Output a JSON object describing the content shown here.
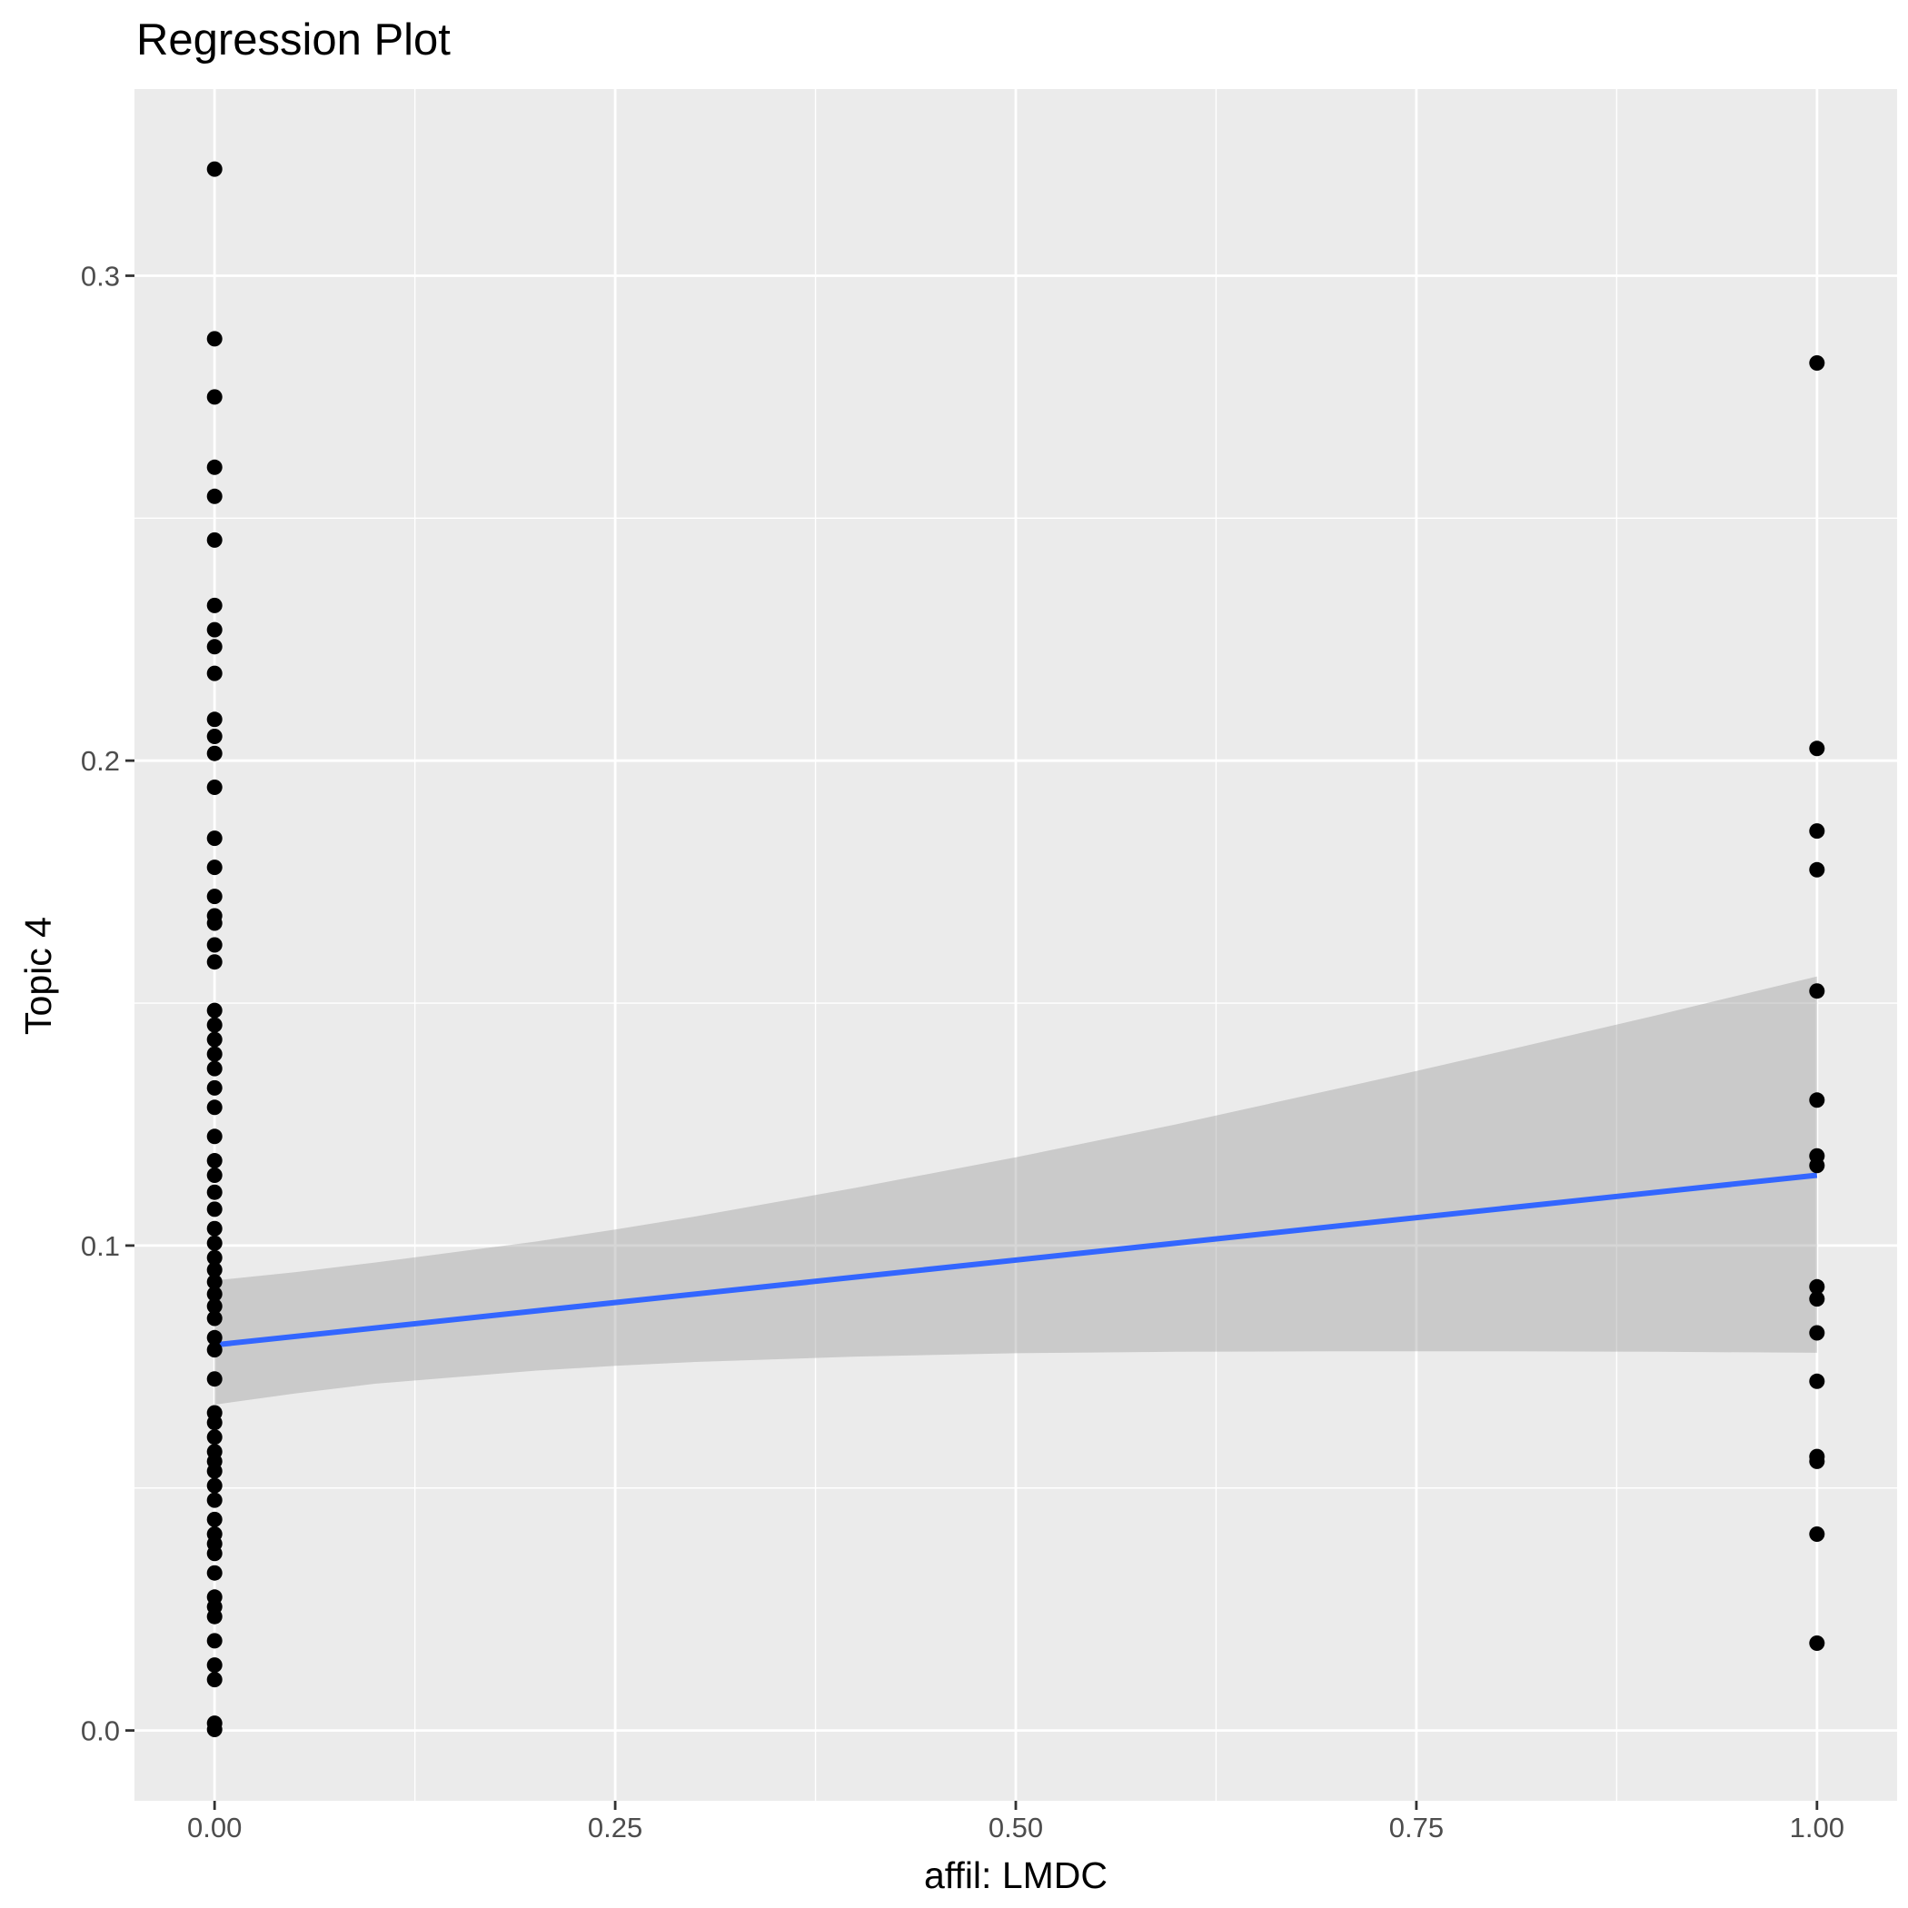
{
  "chart_data": {
    "type": "scatter",
    "title": "Regression Plot",
    "xlabel": "affil: LMDC",
    "ylabel": "Topic 4",
    "xlim": [
      -0.05,
      1.05
    ],
    "ylim": [
      -0.0145,
      0.3385
    ],
    "x_ticks": [
      0,
      0.25,
      0.5,
      0.75,
      1
    ],
    "x_tick_labels": [
      "0.00",
      "0.25",
      "0.50",
      "0.75",
      "1.00"
    ],
    "y_ticks": [
      0,
      0.1,
      0.2,
      0.3
    ],
    "y_tick_labels": [
      "0.0",
      "0.1",
      "0.2",
      "0.3"
    ],
    "grid": true,
    "background": "#ebebeb",
    "series": [
      {
        "type": "scatter",
        "color": "#000000",
        "points": [
          [
            0,
            0.322
          ],
          [
            0,
            0.287
          ],
          [
            0,
            0.275
          ],
          [
            0,
            0.2605
          ],
          [
            0,
            0.2545
          ],
          [
            0,
            0.2455
          ],
          [
            0,
            0.232
          ],
          [
            0,
            0.227
          ],
          [
            0,
            0.2235
          ],
          [
            0,
            0.218
          ],
          [
            0,
            0.2085
          ],
          [
            0,
            0.205
          ],
          [
            0,
            0.2015
          ],
          [
            0,
            0.1945
          ],
          [
            0,
            0.184
          ],
          [
            0,
            0.178
          ],
          [
            0,
            0.172
          ],
          [
            0,
            0.168
          ],
          [
            0,
            0.1665
          ],
          [
            0,
            0.162
          ],
          [
            0,
            0.1585
          ],
          [
            0,
            0.1485
          ],
          [
            0,
            0.1455
          ],
          [
            0,
            0.1425
          ],
          [
            0,
            0.1395
          ],
          [
            0,
            0.1365
          ],
          [
            0,
            0.1325
          ],
          [
            0,
            0.1285
          ],
          [
            0,
            0.1225
          ],
          [
            0,
            0.1175
          ],
          [
            0,
            0.1145
          ],
          [
            0,
            0.111
          ],
          [
            0,
            0.1075
          ],
          [
            0,
            0.1035
          ],
          [
            0,
            0.1005
          ],
          [
            0,
            0.0975
          ],
          [
            0,
            0.095
          ],
          [
            0,
            0.0925
          ],
          [
            0,
            0.09
          ],
          [
            0,
            0.0875
          ],
          [
            0,
            0.085
          ],
          [
            0,
            0.081
          ],
          [
            0,
            0.0785
          ],
          [
            0,
            0.0725
          ],
          [
            0,
            0.0655
          ],
          [
            0,
            0.0635
          ],
          [
            0,
            0.0605
          ],
          [
            0,
            0.0575
          ],
          [
            0,
            0.0555
          ],
          [
            0,
            0.0535
          ],
          [
            0,
            0.0505
          ],
          [
            0,
            0.0475
          ],
          [
            0,
            0.0435
          ],
          [
            0,
            0.0405
          ],
          [
            0,
            0.0385
          ],
          [
            0,
            0.0365
          ],
          [
            0,
            0.0325
          ],
          [
            0,
            0.0275
          ],
          [
            0,
            0.0255
          ],
          [
            0,
            0.0235
          ],
          [
            0,
            0.0185
          ],
          [
            0,
            0.0135
          ],
          [
            0,
            0.0105
          ],
          [
            0,
            0.0015
          ],
          [
            0,
            0.0002
          ],
          [
            1,
            0.282
          ],
          [
            1,
            0.2025
          ],
          [
            1,
            0.1855
          ],
          [
            1,
            0.1775
          ],
          [
            1,
            0.1525
          ],
          [
            1,
            0.13
          ],
          [
            1,
            0.1185
          ],
          [
            1,
            0.1165
          ],
          [
            1,
            0.0915
          ],
          [
            1,
            0.089
          ],
          [
            1,
            0.082
          ],
          [
            1,
            0.072
          ],
          [
            1,
            0.0565
          ],
          [
            1,
            0.0555
          ],
          [
            1,
            0.0405
          ],
          [
            1,
            0.018
          ]
        ]
      },
      {
        "type": "line",
        "color": "#3366FF",
        "x": [
          0,
          1
        ],
        "y": [
          0.0795,
          0.1145
        ]
      },
      {
        "type": "ribbon",
        "color": "#999999",
        "x": [
          0,
          0.05,
          0.1,
          0.2,
          0.25,
          0.3,
          0.4,
          0.5,
          0.6,
          0.7,
          0.75,
          0.8,
          0.9,
          1
        ],
        "ymin": [
          0.0672,
          0.0695,
          0.0715,
          0.0742,
          0.0752,
          0.076,
          0.0771,
          0.0778,
          0.0781,
          0.0782,
          0.0782,
          0.0782,
          0.0781,
          0.0779
        ],
        "ymax": [
          0.0928,
          0.0945,
          0.0965,
          0.1008,
          0.1033,
          0.106,
          0.1119,
          0.1182,
          0.125,
          0.1323,
          0.136,
          0.1398,
          0.1475,
          0.1555
        ]
      }
    ]
  }
}
